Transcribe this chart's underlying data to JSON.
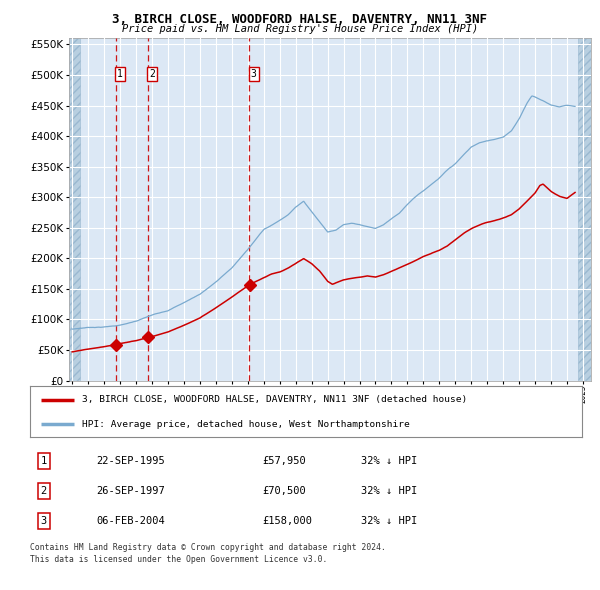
{
  "title1": "3, BIRCH CLOSE, WOODFORD HALSE, DAVENTRY, NN11 3NF",
  "title2": "Price paid vs. HM Land Registry's House Price Index (HPI)",
  "legend_label_red": "3, BIRCH CLOSE, WOODFORD HALSE, DAVENTRY, NN11 3NF (detached house)",
  "legend_label_blue": "HPI: Average price, detached house, West Northamptonshire",
  "footer1": "Contains HM Land Registry data © Crown copyright and database right 2024.",
  "footer2": "This data is licensed under the Open Government Licence v3.0.",
  "transactions": [
    {
      "num": 1,
      "date": "22-SEP-1995",
      "price": "£57,950",
      "hpi": "32% ↓ HPI",
      "year": 1995.73,
      "price_val": 57950
    },
    {
      "num": 2,
      "date": "26-SEP-1997",
      "price": "£70,500",
      "hpi": "32% ↓ HPI",
      "year": 1997.73,
      "price_val": 70500
    },
    {
      "num": 3,
      "date": "06-FEB-2004",
      "price": "£158,000",
      "hpi": "32% ↓ HPI",
      "year": 2004.1,
      "price_val": 158000
    }
  ],
  "ylim": [
    0,
    560000
  ],
  "ytop_label": "£550K",
  "xlim_start": 1992.8,
  "xlim_end": 2025.5,
  "plot_bg": "#dce8f5",
  "hatch_color": "#b8cfe0",
  "grid_color": "#ffffff",
  "red_line_color": "#cc0000",
  "blue_line_color": "#7aaacf",
  "dashed_line_color": "#cc0000",
  "marker_color": "#cc0000",
  "anchors_hpi": [
    [
      1993.0,
      84000
    ],
    [
      1994.0,
      87000
    ],
    [
      1995.0,
      88000
    ],
    [
      1996.0,
      91000
    ],
    [
      1997.0,
      97000
    ],
    [
      1998.0,
      107000
    ],
    [
      1999.0,
      115000
    ],
    [
      2000.0,
      128000
    ],
    [
      2001.0,
      142000
    ],
    [
      2002.0,
      162000
    ],
    [
      2003.0,
      185000
    ],
    [
      2004.0,
      215000
    ],
    [
      2004.5,
      232000
    ],
    [
      2005.0,
      248000
    ],
    [
      2005.5,
      255000
    ],
    [
      2006.0,
      263000
    ],
    [
      2006.5,
      272000
    ],
    [
      2007.0,
      285000
    ],
    [
      2007.5,
      295000
    ],
    [
      2008.0,
      278000
    ],
    [
      2008.5,
      262000
    ],
    [
      2009.0,
      245000
    ],
    [
      2009.5,
      248000
    ],
    [
      2010.0,
      258000
    ],
    [
      2010.5,
      260000
    ],
    [
      2011.0,
      258000
    ],
    [
      2011.5,
      255000
    ],
    [
      2012.0,
      252000
    ],
    [
      2012.5,
      258000
    ],
    [
      2013.0,
      268000
    ],
    [
      2013.5,
      278000
    ],
    [
      2014.0,
      292000
    ],
    [
      2014.5,
      305000
    ],
    [
      2015.0,
      315000
    ],
    [
      2015.5,
      325000
    ],
    [
      2016.0,
      335000
    ],
    [
      2016.5,
      348000
    ],
    [
      2017.0,
      358000
    ],
    [
      2017.5,
      372000
    ],
    [
      2018.0,
      385000
    ],
    [
      2018.5,
      392000
    ],
    [
      2019.0,
      395000
    ],
    [
      2019.5,
      398000
    ],
    [
      2020.0,
      402000
    ],
    [
      2020.5,
      412000
    ],
    [
      2021.0,
      432000
    ],
    [
      2021.5,
      458000
    ],
    [
      2021.8,
      470000
    ],
    [
      2022.0,
      468000
    ],
    [
      2022.5,
      462000
    ],
    [
      2023.0,
      455000
    ],
    [
      2023.5,
      452000
    ],
    [
      2024.0,
      455000
    ],
    [
      2024.5,
      453000
    ]
  ],
  "anchors_red": [
    [
      1993.0,
      47000
    ],
    [
      1994.0,
      51000
    ],
    [
      1995.0,
      55000
    ],
    [
      1995.73,
      57950
    ],
    [
      1996.0,
      60000
    ],
    [
      1997.0,
      65000
    ],
    [
      1997.73,
      70500
    ],
    [
      1998.0,
      72000
    ],
    [
      1999.0,
      80000
    ],
    [
      2000.0,
      91000
    ],
    [
      2001.0,
      103000
    ],
    [
      2002.0,
      120000
    ],
    [
      2003.0,
      138000
    ],
    [
      2004.1,
      158000
    ],
    [
      2004.5,
      163000
    ],
    [
      2005.0,
      169000
    ],
    [
      2005.5,
      175000
    ],
    [
      2006.0,
      178000
    ],
    [
      2006.5,
      184000
    ],
    [
      2007.0,
      192000
    ],
    [
      2007.5,
      200000
    ],
    [
      2008.0,
      192000
    ],
    [
      2008.5,
      180000
    ],
    [
      2009.0,
      163000
    ],
    [
      2009.3,
      158000
    ],
    [
      2009.5,
      160000
    ],
    [
      2010.0,
      165000
    ],
    [
      2010.5,
      168000
    ],
    [
      2011.0,
      170000
    ],
    [
      2011.5,
      172000
    ],
    [
      2012.0,
      170000
    ],
    [
      2012.5,
      174000
    ],
    [
      2013.0,
      180000
    ],
    [
      2013.5,
      186000
    ],
    [
      2014.0,
      192000
    ],
    [
      2014.5,
      198000
    ],
    [
      2015.0,
      205000
    ],
    [
      2015.5,
      210000
    ],
    [
      2016.0,
      215000
    ],
    [
      2016.5,
      222000
    ],
    [
      2017.0,
      232000
    ],
    [
      2017.5,
      242000
    ],
    [
      2018.0,
      250000
    ],
    [
      2018.5,
      256000
    ],
    [
      2019.0,
      260000
    ],
    [
      2019.5,
      263000
    ],
    [
      2020.0,
      267000
    ],
    [
      2020.5,
      272000
    ],
    [
      2021.0,
      282000
    ],
    [
      2021.5,
      295000
    ],
    [
      2022.0,
      308000
    ],
    [
      2022.3,
      320000
    ],
    [
      2022.5,
      322000
    ],
    [
      2023.0,
      310000
    ],
    [
      2023.3,
      305000
    ],
    [
      2023.5,
      302000
    ],
    [
      2024.0,
      298000
    ],
    [
      2024.5,
      308000
    ]
  ]
}
